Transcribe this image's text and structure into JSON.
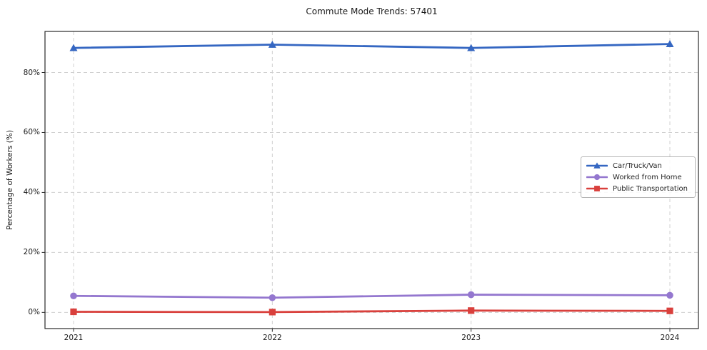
{
  "title": "Commute Mode Trends: 57401",
  "chart_data": {
    "type": "line",
    "title": "Commute Mode Trends: 57401",
    "xlabel": "",
    "ylabel": "Percentage of Workers (%)",
    "categories": [
      "2021",
      "2022",
      "2023",
      "2024"
    ],
    "x": [
      2021,
      2022,
      2023,
      2024
    ],
    "series": [
      {
        "name": "Car/Truck/Van",
        "marker": "triangle",
        "color": "#3567c2",
        "values": [
          88.2,
          89.3,
          88.2,
          89.5
        ]
      },
      {
        "name": "Worked from Home",
        "marker": "circle",
        "color": "#9477cf",
        "values": [
          5.5,
          4.9,
          5.9,
          5.7
        ]
      },
      {
        "name": "Public Transportation",
        "marker": "square",
        "color": "#d9403c",
        "values": [
          0.2,
          0.1,
          0.6,
          0.5
        ]
      }
    ],
    "ytick_labels": [
      "0%",
      "20%",
      "40%",
      "60%",
      "80%"
    ],
    "ytick_values": [
      0,
      20,
      40,
      60,
      80
    ],
    "ylim": [
      -5.4,
      93.7
    ],
    "grid": true,
    "grid_style": "dashed",
    "legend_position": "center-right"
  },
  "style": {
    "grid_color": "#d0d0d0",
    "spine_color": "#2a2a2a",
    "text_color": "#1a1a1a",
    "background": "#ffffff"
  }
}
